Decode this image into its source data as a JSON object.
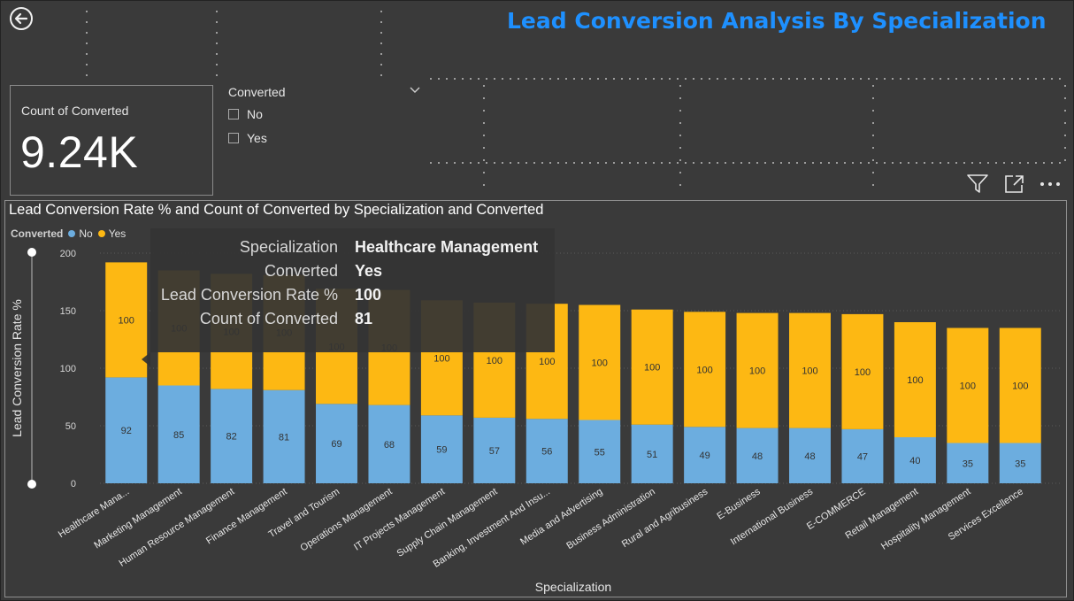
{
  "page_title": "Lead Conversion Analysis By Specialization",
  "icons": {
    "back": "back-arrow-icon",
    "filter": "filter-icon",
    "focus": "focus-mode-icon",
    "more": "more-options-icon"
  },
  "kpi": {
    "label": "Count of Converted",
    "value": "9.24K"
  },
  "slicer": {
    "title": "Converted",
    "options": [
      {
        "label": "No"
      },
      {
        "label": "Yes"
      }
    ]
  },
  "colors": {
    "no": "#6caddf",
    "yes": "#fdb813",
    "title": "#1e90ff",
    "background": "#3a3a3a"
  },
  "chart_data": {
    "type": "bar",
    "stacked": true,
    "title": "Lead Conversion Rate % and Count of Converted by Specialization and Converted",
    "legend": {
      "title": "Converted",
      "placement": "top-left",
      "items": [
        "No",
        "Yes"
      ]
    },
    "xlabel": "Specialization",
    "ylabel": "Lead Conversion Rate %",
    "ylim": [
      0,
      200
    ],
    "yticks": [
      0,
      50,
      100,
      150,
      200
    ],
    "grid": true,
    "categories": [
      "Healthcare Mana...",
      "Marketing Management",
      "Human Resource Management",
      "Finance Management",
      "Travel and Tourism",
      "Operations Management",
      "IT Projects Management",
      "Supply Chain Management",
      "Banking, Investment And Insu...",
      "Media and Advertising",
      "Business Administration",
      "Rural and Agribusiness",
      "E-Business",
      "International Business",
      "E-COMMERCE",
      "Retail Management",
      "Hospitality Management",
      "Services Excellence"
    ],
    "series": [
      {
        "name": "No",
        "values": [
          92,
          85,
          82,
          81,
          69,
          68,
          59,
          57,
          56,
          55,
          51,
          49,
          48,
          48,
          47,
          40,
          35,
          35
        ]
      },
      {
        "name": "Yes",
        "values": [
          100,
          100,
          100,
          100,
          100,
          100,
          100,
          100,
          100,
          100,
          100,
          100,
          100,
          100,
          100,
          100,
          100,
          100
        ]
      }
    ]
  },
  "tooltip": {
    "rows": [
      {
        "key": "Specialization",
        "value": "Healthcare Management"
      },
      {
        "key": "Converted",
        "value": "Yes"
      },
      {
        "key": "Lead Conversion Rate %",
        "value": "100"
      },
      {
        "key": "Count of Converted",
        "value": "81"
      }
    ]
  }
}
